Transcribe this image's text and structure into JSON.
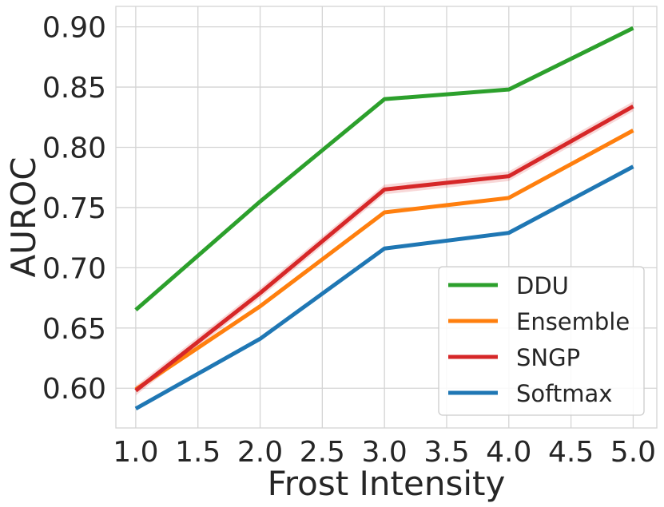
{
  "chart_data": {
    "type": "line",
    "title": "",
    "xlabel": "Frost Intensity",
    "ylabel": "AUROC",
    "xlim": [
      0.84,
      5.19
    ],
    "ylim": [
      0.567,
      0.917
    ],
    "xticks": [
      1.0,
      1.5,
      2.0,
      2.5,
      3.0,
      3.5,
      4.0,
      4.5,
      5.0
    ],
    "xtick_labels": [
      "1.0",
      "1.5",
      "2.0",
      "2.5",
      "3.0",
      "3.5",
      "4.0",
      "4.5",
      "5.0"
    ],
    "yticks": [
      0.6,
      0.65,
      0.7,
      0.75,
      0.8,
      0.85,
      0.9
    ],
    "ytick_labels": [
      "0.60",
      "0.65",
      "0.70",
      "0.75",
      "0.80",
      "0.85",
      "0.90"
    ],
    "grid": true,
    "legend_position": "bottom-right",
    "x": [
      1,
      2,
      3,
      4,
      5
    ],
    "series": [
      {
        "name": "DDU",
        "color": "#2ca02c",
        "values": [
          0.665,
          0.755,
          0.84,
          0.848,
          0.899
        ],
        "band": 0
      },
      {
        "name": "Ensemble",
        "color": "#ff7f0e",
        "values": [
          0.599,
          0.668,
          0.746,
          0.758,
          0.814
        ],
        "band": 0
      },
      {
        "name": "SNGP",
        "color": "#d62728",
        "values": [
          0.598,
          0.679,
          0.765,
          0.776,
          0.834
        ],
        "band": 0.004
      },
      {
        "name": "Softmax",
        "color": "#1f77b4",
        "values": [
          0.583,
          0.641,
          0.716,
          0.729,
          0.784
        ],
        "band": 0
      }
    ]
  }
}
